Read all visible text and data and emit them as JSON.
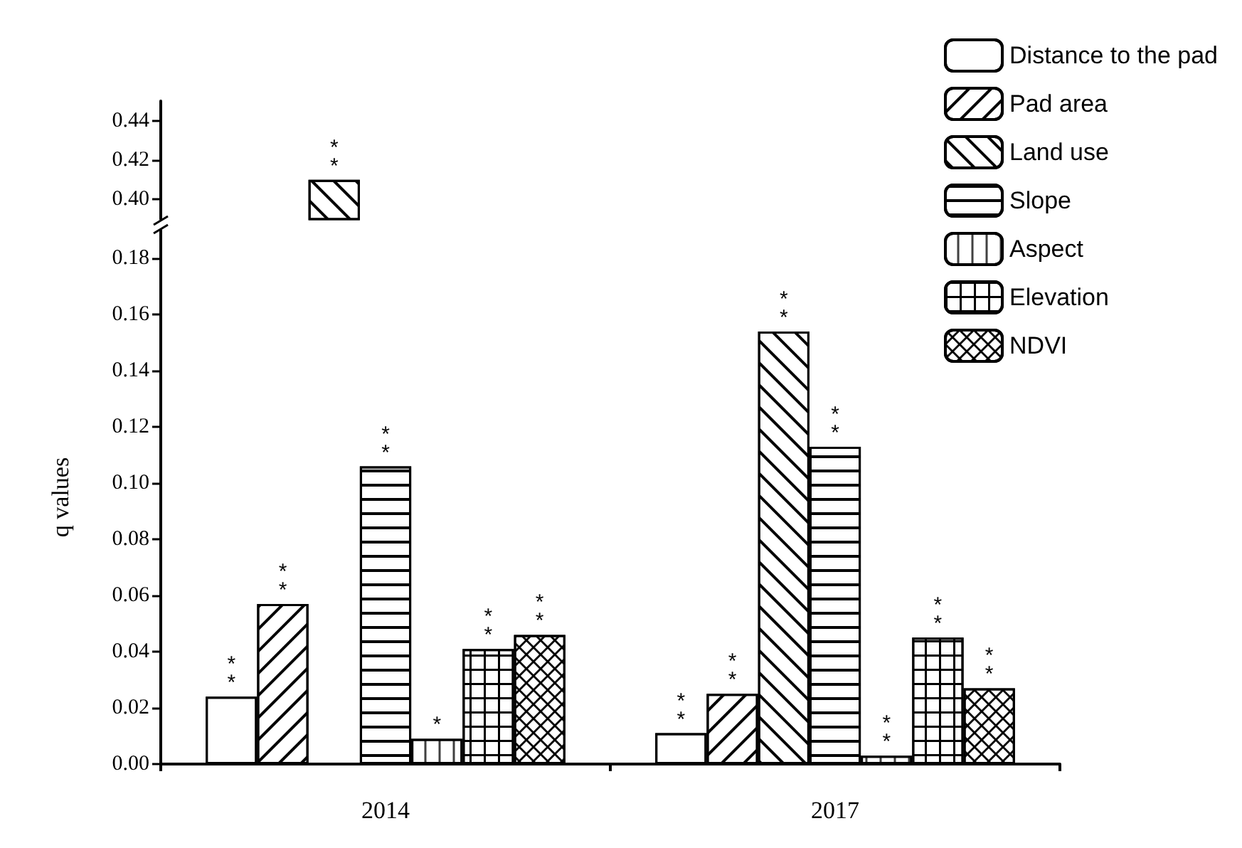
{
  "chart_data": [
    {
      "type": "bar",
      "categories": [
        "2014",
        "2017"
      ],
      "ylim": [
        0.39,
        0.45
      ],
      "yticks": [
        {
          "value": 0.4,
          "label": "0.40"
        },
        0.42,
        0.44
      ],
      "tick_labels": "y",
      "series": [
        {
          "color": "#000000",
          "values": [
            null,
            null
          ]
        },
        {
          "color": "#000000",
          "values": [
            null,
            null
          ]
        },
        {
          "color": "#000000",
          "values": [
            0.41,
            null
          ],
          "value_labels": [
            "**",
            null
          ]
        },
        {
          "color": "#000000",
          "values": [
            null,
            null
          ]
        },
        {
          "color": "#000000",
          "values": [
            null,
            null
          ]
        },
        {
          "color": "#000000",
          "values": [
            null,
            null
          ]
        },
        {
          "color": "#000000",
          "values": [
            null,
            null
          ]
        }
      ]
    },
    {
      "type": "bar",
      "categories": [
        "2014",
        "2017"
      ],
      "ylabel": "q values",
      "ylim": [
        0,
        0.19
      ],
      "yticks": [
        {
          "value": 0,
          "label": "0.00"
        },
        0.02,
        0.04,
        0.06,
        0.08,
        {
          "value": 0.1,
          "label": "0.10"
        },
        0.12,
        0.14,
        0.16,
        0.18
      ],
      "legend": "top right",
      "series": [
        {
          "name": "Distance to the pad",
          "color": "#000000",
          "values": [
            0.024,
            0.011
          ],
          "value_labels": [
            "**",
            "**"
          ]
        },
        {
          "name": "Pad area",
          "color": "#000000",
          "values": [
            0.057,
            0.025
          ],
          "value_labels": [
            "**",
            "**"
          ]
        },
        {
          "name": "Land use",
          "color": "#000000",
          "values": [
            null,
            0.154
          ],
          "value_labels": [
            null,
            "**"
          ]
        },
        {
          "name": "Slope",
          "color": "#000000",
          "values": [
            0.106,
            0.113
          ],
          "value_labels": [
            "**",
            "**"
          ]
        },
        {
          "name": "Aspect",
          "color": "#000000",
          "values": [
            0.009,
            0.003
          ],
          "value_labels": [
            "*",
            "**"
          ]
        },
        {
          "name": "Elevation",
          "color": "#000000",
          "values": [
            0.041,
            0.045
          ],
          "value_labels": [
            "**",
            "**"
          ]
        },
        {
          "name": "NDVI",
          "color": "#000000",
          "values": [
            0.046,
            0.027
          ],
          "value_labels": [
            "**",
            "**"
          ]
        }
      ]
    }
  ]
}
